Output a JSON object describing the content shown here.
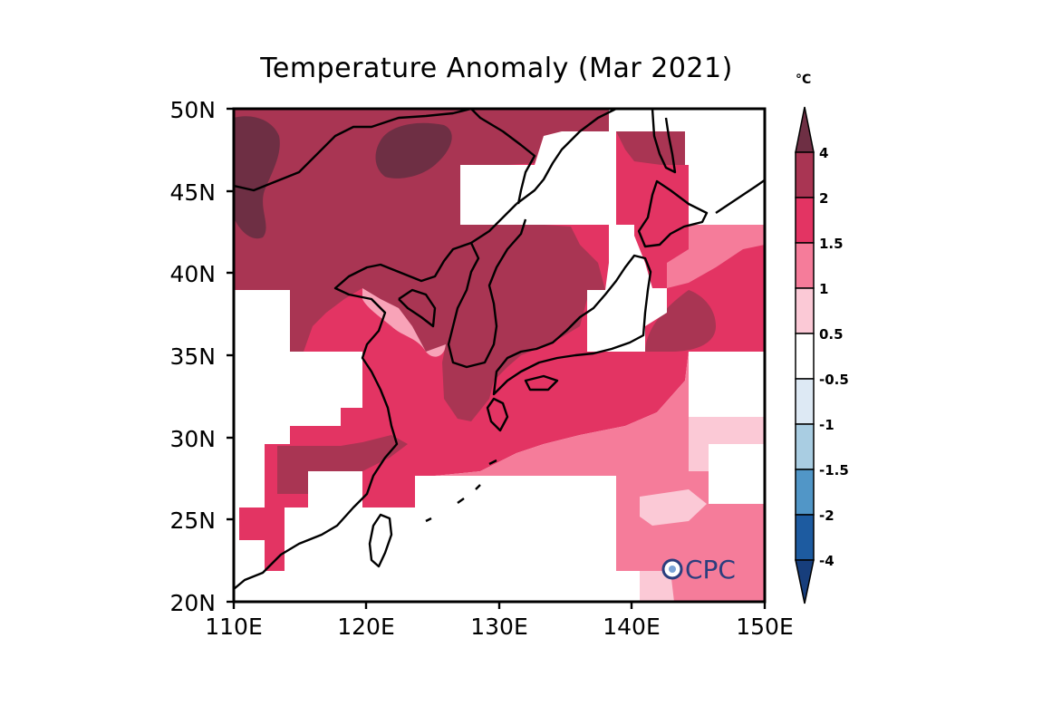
{
  "title": "Temperature Anomaly (Mar 2021)",
  "unit": "°C",
  "logo_text": "CPC",
  "map": {
    "lon_range": [
      110,
      150
    ],
    "lat_range": [
      20,
      50
    ],
    "lat_labels": [
      "20N",
      "25N",
      "30N",
      "35N",
      "40N",
      "45N",
      "50N"
    ],
    "lon_labels": [
      "110E",
      "120E",
      "130E",
      "140E",
      "150E"
    ]
  },
  "colorbar": {
    "labels": [
      "4",
      "2",
      "1.5",
      "1",
      "0.5",
      "-0.5",
      "-1",
      "-1.5",
      "-2",
      "-4"
    ],
    "colors": [
      "#6e2f44",
      "#a93553",
      "#e33463",
      "#f57c9a",
      "#fbc9d6",
      "#ffffff",
      "#dde9f4",
      "#a9cde2",
      "#5196c7",
      "#1d5ba0",
      "#173e7c"
    ]
  },
  "colors": {
    "land_outline": "#000000",
    "level_4": "#6e2f44",
    "level_2": "#a93553",
    "level_1_5": "#e33463",
    "level_1": "#f57c9a",
    "level_0_5": "#fbc9d6"
  }
}
